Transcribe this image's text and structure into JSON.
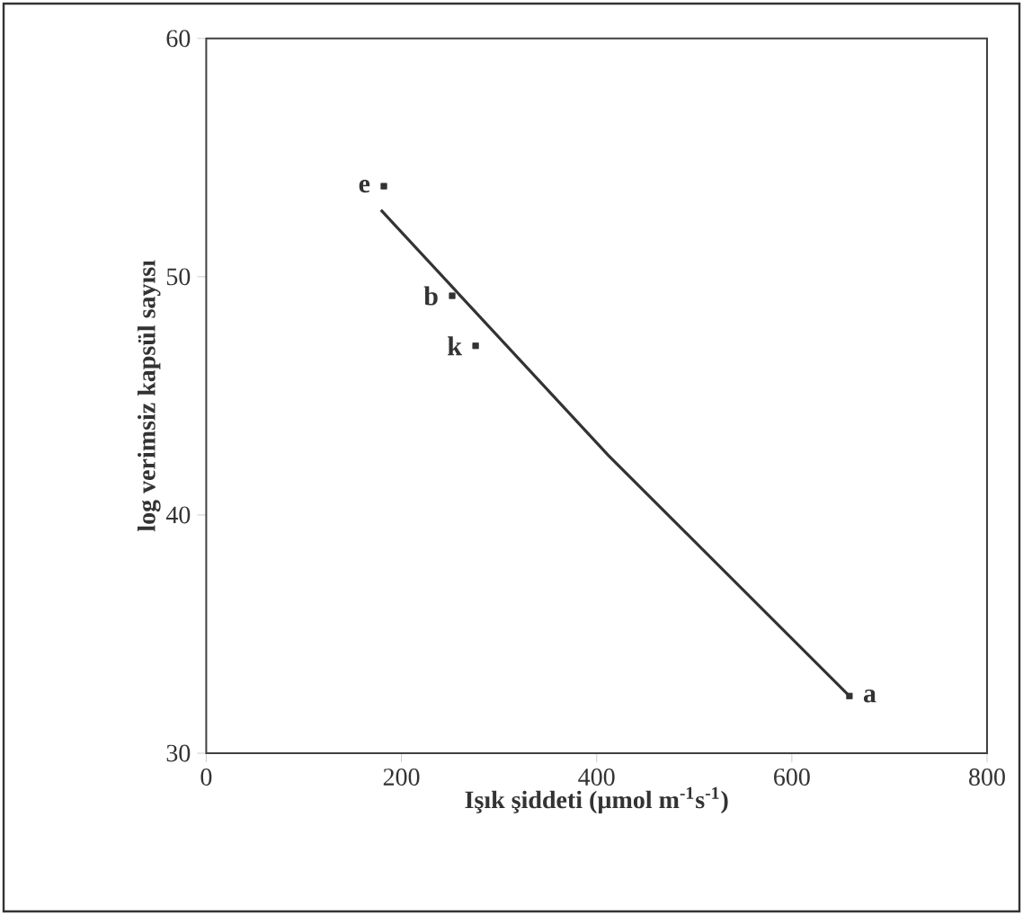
{
  "chart_data": {
    "type": "scatter",
    "xlabel": "Işık şiddeti (µmol m$^{-1}$s$^{-1}$)",
    "ylabel": "log verimsiz kapsül sayısı",
    "xlim": [
      0,
      800
    ],
    "ylim": [
      30,
      60
    ],
    "xticks": [
      0,
      200,
      400,
      600,
      800
    ],
    "yticks": [
      30,
      40,
      50,
      60
    ],
    "grid": false,
    "series": [
      {
        "color": "#333333",
        "marker": "square",
        "x": [
          182,
          252,
          276,
          659
        ],
        "values": [
          53.8,
          49.2,
          47.1,
          32.4
        ]
      },
      {
        "type": "line",
        "color": "#333333",
        "marker": "none",
        "line_style": "solid",
        "x": [
          179,
          412,
          659
        ],
        "values": [
          52.8,
          42.5,
          32.4
        ]
      }
    ],
    "annotations": [
      {
        "text": "e",
        "x": 182,
        "y": 53.8
      },
      {
        "text": "b",
        "x": 252,
        "y": 49.2
      },
      {
        "text": "k",
        "x": 276,
        "y": 47.1
      },
      {
        "text": "a",
        "x": 659,
        "y": 32.4
      }
    ]
  }
}
